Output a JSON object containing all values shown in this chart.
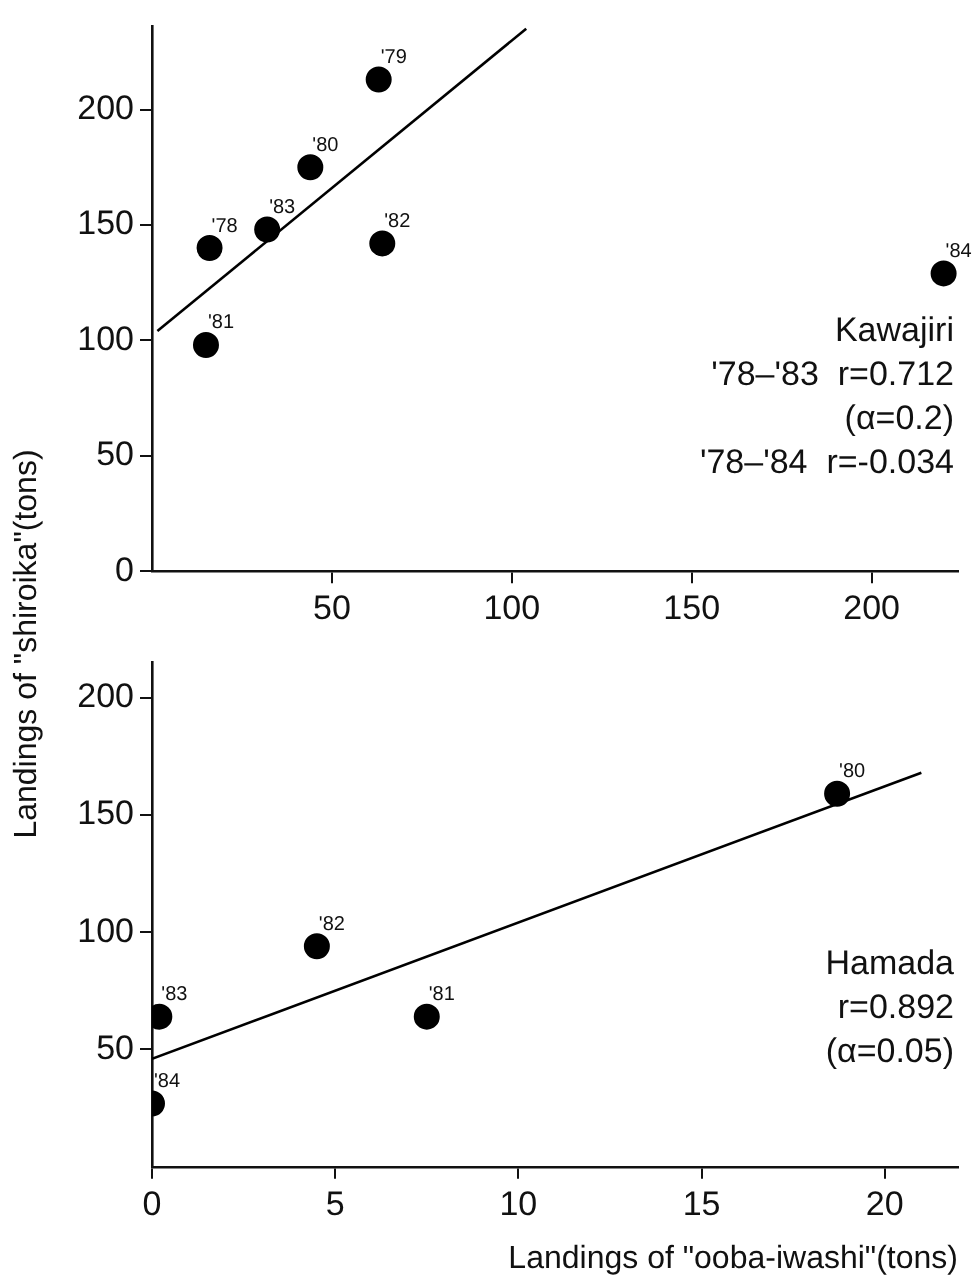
{
  "chart_data": [
    {
      "type": "scatter",
      "ylabel": "Landings of \"shiroika\"(tons)",
      "xlim": [
        0,
        224
      ],
      "ylim": [
        0,
        236
      ],
      "xticks": [
        50,
        100,
        150,
        200
      ],
      "yticks": [
        0,
        50,
        100,
        150,
        200
      ],
      "grid": false,
      "legend": false,
      "marker": "circle",
      "series": [
        {
          "type": "scatter",
          "color": "#000000",
          "x": [
            16,
            32,
            44,
            63,
            64,
            15,
            220
          ],
          "values": [
            140,
            148,
            175,
            213,
            142,
            98,
            129
          ]
        },
        {
          "type": "line",
          "color": "#000000",
          "marker": "none",
          "x": [
            1.5,
            104
          ],
          "values": [
            104,
            235
          ]
        }
      ],
      "annotations": [
        {
          "text": "'78",
          "x": 16,
          "y": 140
        },
        {
          "text": "'83",
          "x": 32,
          "y": 148
        },
        {
          "text": "'80",
          "x": 44,
          "y": 175
        },
        {
          "text": "'79",
          "x": 63,
          "y": 213
        },
        {
          "text": "'82",
          "x": 64,
          "y": 142
        },
        {
          "text": "'81",
          "x": 15,
          "y": 98
        },
        {
          "text": "'84",
          "x": 220,
          "y": 129
        },
        "Kawajiri",
        "'78–'83  r=0.712",
        "(α=0.2)",
        "'78–'84  r=-0.034"
      ]
    },
    {
      "type": "scatter",
      "xlabel": "Landings of \"ooba-iwashi\"(tons)",
      "xlim": [
        0,
        22
      ],
      "ylim": [
        0,
        215
      ],
      "xticks": [
        0,
        5,
        10,
        15,
        20
      ],
      "yticks": [
        50,
        100,
        150,
        200
      ],
      "grid": false,
      "legend": false,
      "marker": "circle",
      "series": [
        {
          "type": "scatter",
          "color": "#000000",
          "x": [
            18.7,
            4.5,
            7.5,
            0.2,
            0
          ],
          "values": [
            159,
            94,
            64,
            64,
            27
          ]
        },
        {
          "type": "line",
          "color": "#000000",
          "marker": "none",
          "x": [
            0,
            21
          ],
          "values": [
            46,
            168
          ]
        }
      ],
      "annotations": [
        {
          "text": "'80",
          "x": 18.7,
          "y": 159
        },
        {
          "text": "'82",
          "x": 4.5,
          "y": 94
        },
        {
          "text": "'81",
          "x": 7.5,
          "y": 64
        },
        {
          "text": "'83",
          "x": 0.2,
          "y": 64
        },
        {
          "text": "'84",
          "x": 0,
          "y": 27
        },
        "Hamada",
        "r=0.892",
        "(α=0.05)"
      ]
    }
  ]
}
